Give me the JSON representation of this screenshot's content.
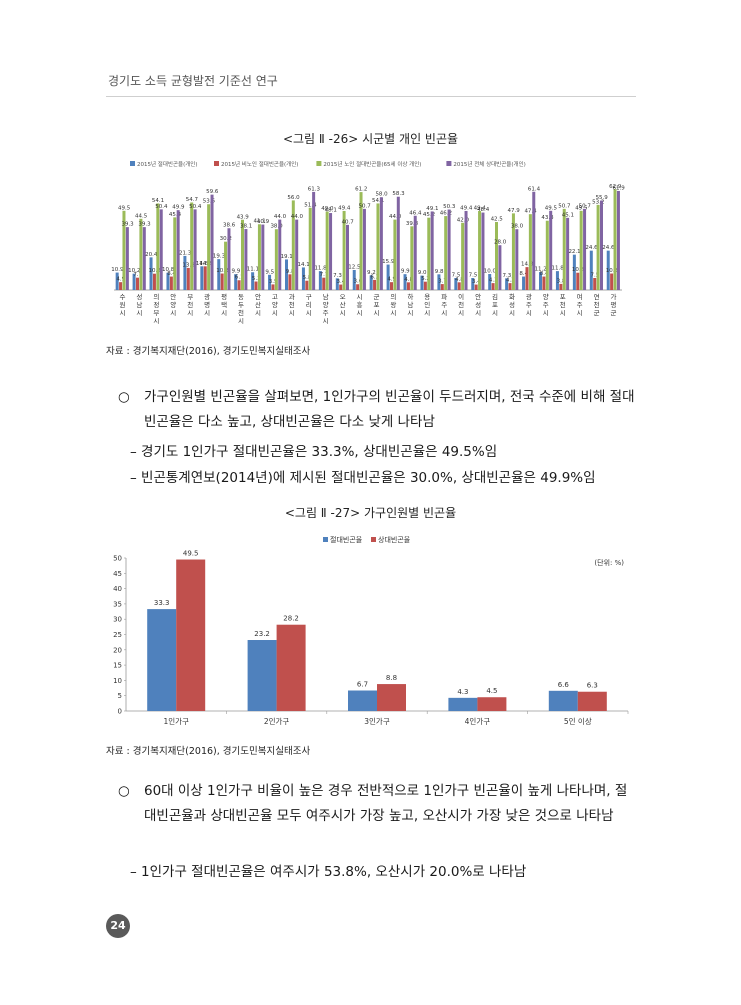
{
  "header": {
    "title": "경기도 소득 균형발전 기준선 연구"
  },
  "figure1": {
    "caption": "<그림 Ⅱ -26> 시군별 개인 빈곤율",
    "source": "자료 : 경기복지재단(2016), 경기도민복지실태조사"
  },
  "figure2": {
    "caption": "<그림 Ⅱ -27> 가구인원별 빈곤율",
    "source": "자료 : 경기복지재단(2016), 경기도민복지실태조사"
  },
  "body": {
    "bullet1": {
      "bullet": "○",
      "text": "가구인원별 빈곤율을 살펴보면, 1인가구의 빈곤율이 두드러지며, 전국 수준에 비해 절대빈곤율은 다소 높고, 상대빈곤율은 다소 낮게 나타남"
    },
    "dash1": "– 경기도 1인가구 절대빈곤율은 33.3%, 상대빈곤율은 49.5%임",
    "dash2": "– 빈곤통계연보(2014년)에 제시된 절대빈곤율은 30.0%, 상대빈곤율은 49.9%임",
    "bullet2": {
      "bullet": "○",
      "text": "60대 이상 1인가구 비율이 높은 경우 전반적으로 1인가구 빈곤율이 높게 나타나며, 절대빈곤율과 상대빈곤율 모두 여주시가 가장 높고, 오산시가 가장 낮은 것으로 나타남"
    },
    "dash3": "– 1인가구 절대빈곤율은 여주시가 53.8%, 오산시가 20.0%로 나타남"
  },
  "page_number": "24",
  "colors": {
    "blue": "#4f81bd",
    "red": "#c0504d",
    "green": "#9bbb59",
    "purple": "#8064a2"
  },
  "chart_data": [
    {
      "type": "bar",
      "title": "",
      "series": [
        {
          "name": "2015년 절대빈곤율(개인)",
          "color": "#4f81bd",
          "values": [
            10.9,
            10.2,
            20.4,
            10.8,
            21.3,
            14.8,
            19.3,
            9.9,
            11.1,
            9.5,
            19.1,
            14.1,
            11.8,
            7.3,
            12.5,
            9.2,
            15.9,
            9.9,
            9.0,
            9.8,
            7.5,
            7.5,
            10.0,
            7.3,
            8.4,
            11.2,
            11.8,
            22.1,
            24.6,
            24.6
          ]
        },
        {
          "name": "2015년 비노인 절대빈곤율(개인)",
          "color": "#c0504d",
          "values": [
            4.9,
            7.7,
            10.2,
            8.4,
            13.8,
            14.8,
            10.3,
            6.1,
            5.3,
            3.5,
            9.8,
            5.8,
            7.7,
            3.4,
            3.6,
            6.3,
            4.9,
            4.8,
            5.2,
            3.7,
            4.8,
            3.4,
            4.3,
            4.3,
            14.3,
            8.4,
            3.8,
            10.8,
            7.5,
            10.3
          ]
        },
        {
          "name": "2015년 노인 절대빈곤율(65세 이상 개인)",
          "color": "#9bbb59",
          "values": [
            49.5,
            44.5,
            54.1,
            45.4,
            54.7,
            53.6,
            30.2,
            43.9,
            41.1,
            38.0,
            56.0,
            51.4,
            49.0,
            49.4,
            61.2,
            54.1,
            44.0,
            39.8,
            45.2,
            46.2,
            42.0,
            49.4,
            42.5,
            47.9,
            47.4,
            43.3,
            50.7,
            49.5,
            53.2,
            62.9
          ]
        },
        {
          "name": "2015년 전체 상대빈곤율(개인)",
          "color": "#8064a2",
          "values": [
            39.3,
            39.3,
            50.4,
            49.9,
            50.4,
            59.6,
            38.6,
            38.1,
            40.9,
            44.0,
            44.0,
            61.3,
            48.1,
            40.7,
            50.7,
            58.0,
            58.3,
            46.4,
            49.1,
            50.3,
            49.4,
            48.4,
            28.0,
            38.0,
            61.4,
            49.5,
            45.1,
            50.7,
            55.9,
            61.9
          ]
        }
      ],
      "categories": [
        "수원시",
        "성남시",
        "의정부시",
        "안양시",
        "부천시",
        "광명시",
        "평택시",
        "동두천시",
        "안산시",
        "고양시",
        "과천시",
        "구리시",
        "남양주시",
        "오산시",
        "시흥시",
        "군포시",
        "의왕시",
        "하남시",
        "용인시",
        "파주시",
        "이천시",
        "안성시",
        "김포시",
        "화성시",
        "광주시",
        "양주시",
        "포천시",
        "여주시",
        "연천군",
        "가평군"
      ]
    },
    {
      "type": "bar",
      "title": "",
      "categories": [
        "1인가구",
        "2인가구",
        "3인가구",
        "4인가구",
        "5인 이상"
      ],
      "series": [
        {
          "name": "절대빈곤율",
          "color": "#4f81bd",
          "values": [
            33.3,
            23.2,
            6.7,
            4.3,
            6.6
          ]
        },
        {
          "name": "상대빈곤율",
          "color": "#c0504d",
          "values": [
            49.5,
            28.2,
            8.8,
            4.5,
            6.3
          ]
        }
      ],
      "ylim": [
        0,
        50
      ],
      "yticks": [
        0,
        5,
        10,
        15,
        20,
        25,
        30,
        35,
        40,
        45,
        50
      ],
      "unit_note": "(단위: %)",
      "legend": "top-center"
    }
  ]
}
